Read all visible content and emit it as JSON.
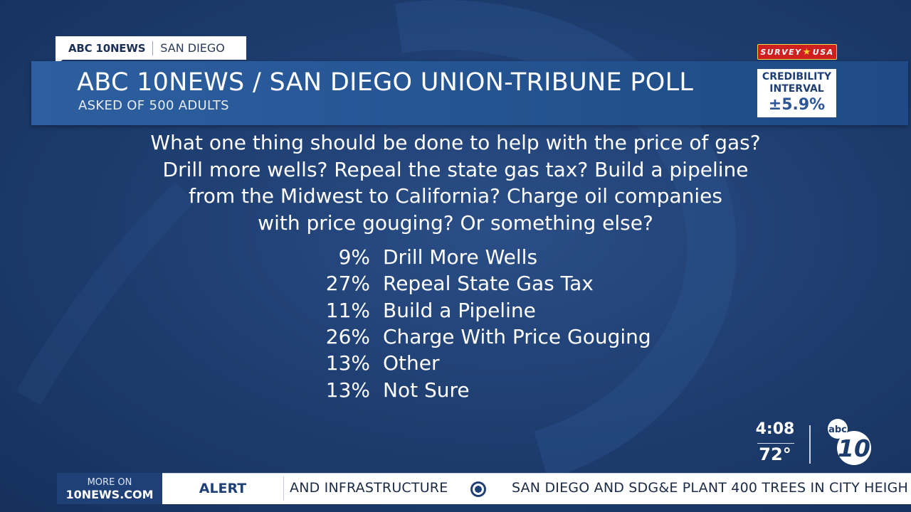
{
  "bug": {
    "brand": "ABC 10NEWS",
    "city": "SAN DIEGO"
  },
  "header": {
    "title": "ABC 10NEWS / SAN DIEGO UNION-TRIBUNE POLL",
    "subtitle": "ASKED OF 500 ADULTS"
  },
  "survey_logo": {
    "text_left": "SURVEY",
    "text_right": "USA",
    "icon": "star-icon",
    "color": "#cf1f1f"
  },
  "credibility": {
    "line1": "CREDIBILITY",
    "line2": "INTERVAL",
    "value": "±5.9%"
  },
  "question": {
    "lines": [
      "What one thing should be done to help with the price of gas?",
      "Drill more wells? Repeal the state gas tax? Build a pipeline",
      "from the Midwest to California? Charge oil companies",
      "with price gouging? Or something else?"
    ]
  },
  "results": [
    {
      "pct": "9%",
      "label": "Drill More Wells"
    },
    {
      "pct": "27%",
      "label": "Repeal State Gas Tax"
    },
    {
      "pct": "11%",
      "label": "Build a Pipeline"
    },
    {
      "pct": "26%",
      "label": "Charge With Price Gouging"
    },
    {
      "pct": "13%",
      "label": "Other"
    },
    {
      "pct": "13%",
      "label": "Not Sure"
    }
  ],
  "status": {
    "time": "4:08",
    "temp": "72°"
  },
  "station_logo": {
    "top": "abc",
    "number": "10"
  },
  "ticker": {
    "more_line1": "MORE ON",
    "more_line2": "10NEWS.COM",
    "alert": "ALERT",
    "crawl1": "AND INFRASTRUCTURE",
    "crawl2": "SAN DIEGO AND SDG&E PLANT 400 TREES IN CITY HEIGH"
  },
  "colors": {
    "background": "#1d3c6e",
    "band": "#2d5fa0",
    "ticker_blue": "#1f3f77"
  }
}
